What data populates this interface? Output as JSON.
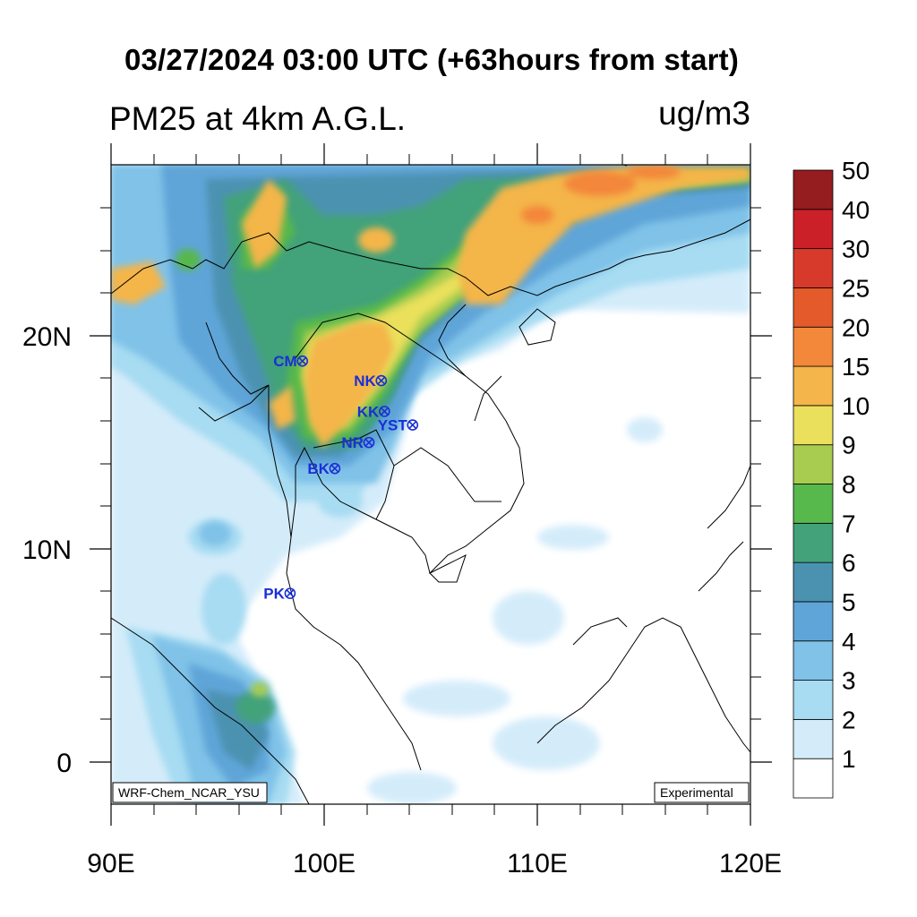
{
  "header": {
    "title": "03/27/2024 03:00 UTC (+63hours from start)",
    "subtitle": "PM25 at 4km A.G.L.",
    "units": "ug/m3"
  },
  "axes": {
    "x_ticks": [
      "90E",
      "100E",
      "110E",
      "120E"
    ],
    "y_ticks": [
      "20N",
      "10N",
      "0"
    ],
    "lon_range": [
      90,
      120
    ],
    "lat_range": [
      -2,
      28
    ]
  },
  "colorbar": {
    "levels": [
      "1",
      "2",
      "3",
      "4",
      "5",
      "6",
      "7",
      "8",
      "9",
      "10",
      "15",
      "20",
      "25",
      "30",
      "40",
      "50"
    ],
    "colors": [
      "#ffffff",
      "#d4ecfa",
      "#a7dcf2",
      "#80c2e8",
      "#5fa5d8",
      "#4b92b1",
      "#43a27a",
      "#57b84c",
      "#a7cc50",
      "#eae05c",
      "#f4b54a",
      "#f3873a",
      "#e45a2a",
      "#d73a2a",
      "#cb2027",
      "#951c1f"
    ]
  },
  "stations": [
    {
      "label": "CM",
      "lon": 98.98,
      "lat": 18.79
    },
    {
      "label": "NK",
      "lon": 102.68,
      "lat": 17.87
    },
    {
      "label": "KK",
      "lon": 102.83,
      "lat": 16.43
    },
    {
      "label": "YST",
      "lon": 104.15,
      "lat": 15.79
    },
    {
      "label": "NR",
      "lon": 102.1,
      "lat": 14.97
    },
    {
      "label": "BK",
      "lon": 100.5,
      "lat": 13.75
    },
    {
      "label": "PK",
      "lon": 98.4,
      "lat": 7.89
    }
  ],
  "footer": {
    "left_label": "WRF-Chem_NCAR_YSU",
    "right_label": "Experimental"
  }
}
